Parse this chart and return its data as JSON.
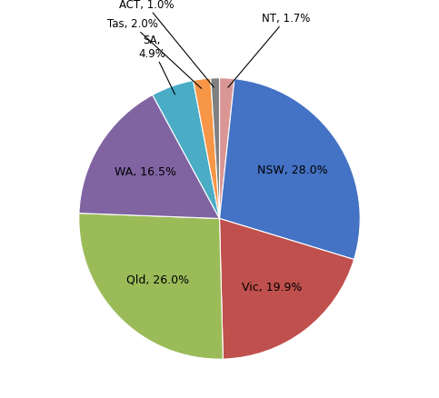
{
  "labels": [
    "NT",
    "NSW",
    "Vic",
    "Qld",
    "WA",
    "SA",
    "Tas",
    "ACT"
  ],
  "values": [
    1.7,
    28.0,
    19.9,
    26.0,
    16.5,
    4.9,
    2.0,
    1.0
  ],
  "colors": [
    "#D99694",
    "#4472C4",
    "#C0504D",
    "#9BBB59",
    "#8064A2",
    "#4BACC6",
    "#F79646",
    "#808080"
  ],
  "label_texts": [
    "NT, 1.7%",
    "NSW, 28.0%",
    "Vic, 19.9%",
    "Qld, 26.0%",
    "WA, 16.5%",
    "SA,\n4.9%",
    "Tas, 2.0%",
    "ACT, 1.0%"
  ],
  "small_labels": [
    "NT",
    "SA",
    "Tas",
    "ACT"
  ],
  "background_color": "#FFFFFF",
  "startangle": 90
}
